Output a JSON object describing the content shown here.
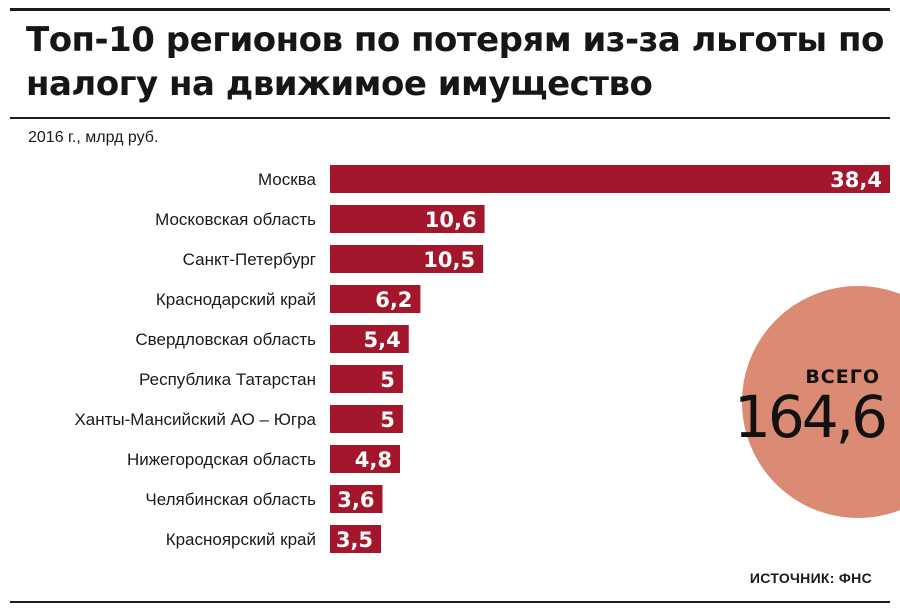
{
  "chart_data": {
    "type": "bar",
    "orientation": "horizontal",
    "title": "Топ-10 регионов по потерям из-за льготы по налогу на движимое имущество",
    "subtitle": "2016 г., млрд руб.",
    "categories": [
      "Москва",
      "Московская область",
      "Санкт-Петербург",
      "Краснодарский край",
      "Свердловская область",
      "Республика Татарстан",
      "Ханты-Мансийский АО – Югра",
      "Нижегородская область",
      "Челябинская область",
      "Красноярский край"
    ],
    "values": [
      38.4,
      10.6,
      10.5,
      6.2,
      5.4,
      5,
      5,
      4.8,
      3.6,
      3.5
    ],
    "value_labels": [
      "38,4",
      "10,6",
      "10,5",
      "6,2",
      "5,4",
      "5",
      "5",
      "4,8",
      "3,6",
      "3,5"
    ],
    "xlim": [
      0,
      38.4
    ],
    "grid": false,
    "legend": "none",
    "total": {
      "label": "ВСЕГО",
      "value": 164.6,
      "value_label": "164,6"
    },
    "source": "ИСТОЧНИК: ФНС",
    "colors": {
      "bar": "#a3162b",
      "total_circle": "#db8a73"
    }
  }
}
